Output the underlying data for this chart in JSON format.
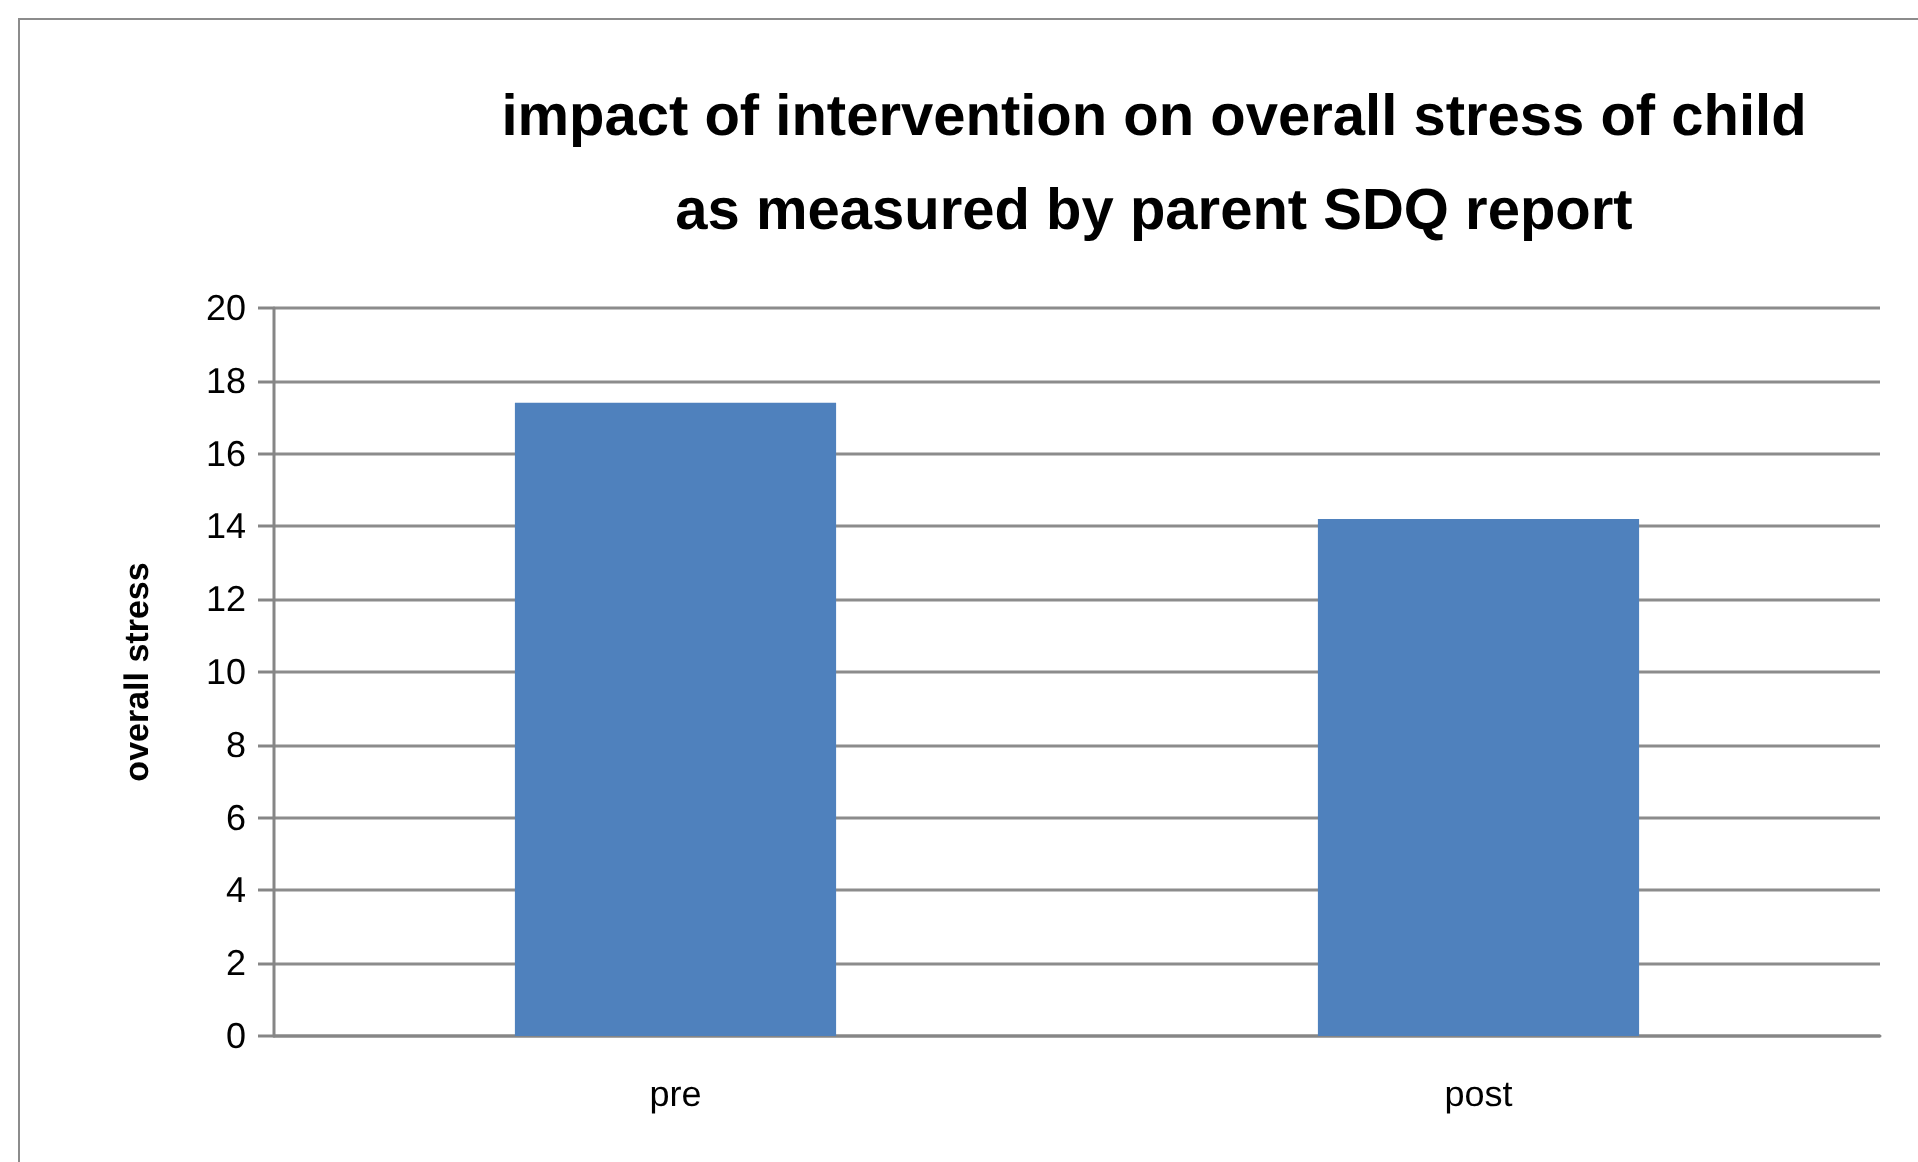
{
  "chart_data": {
    "type": "bar",
    "title": "impact of intervention on overall stress of child\nas measured by parent SDQ report",
    "ylabel": "overall stress",
    "categories": [
      "pre",
      "post"
    ],
    "values": [
      17.4,
      14.2
    ],
    "color": "#4f81bd",
    "ylim": [
      0,
      20
    ],
    "yticks": [
      0,
      2,
      4,
      6,
      8,
      10,
      12,
      14,
      16,
      18,
      20
    ],
    "grid": "y"
  }
}
